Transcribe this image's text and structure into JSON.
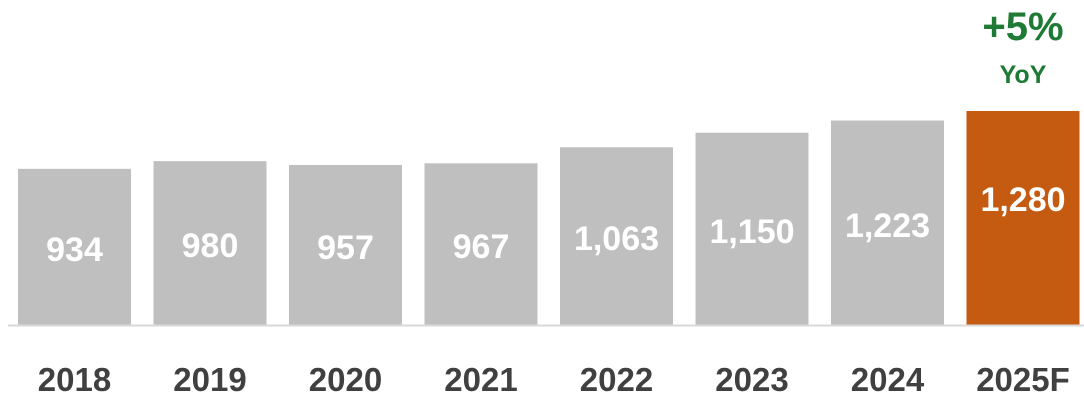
{
  "chart_data": {
    "type": "bar",
    "categories": [
      "2018",
      "2019",
      "2020",
      "2021",
      "2022",
      "2023",
      "2024",
      "2025F"
    ],
    "values": [
      934,
      980,
      957,
      967,
      1063,
      1150,
      1223,
      1280
    ],
    "value_labels": [
      "934",
      "980",
      "957",
      "967",
      "1,063",
      "1,150",
      "1,223",
      "1,280"
    ],
    "highlight_index": 7,
    "annotation": {
      "value": "+5%",
      "unit": "YoY"
    },
    "title": "",
    "xlabel": "",
    "ylabel": "",
    "grid": false,
    "legend": "none"
  },
  "colors": {
    "bar": "#bfbfbf",
    "highlight_bar": "#c55a11",
    "annotation": "#1e7a34",
    "value_label": "#ffffff",
    "category_label": "#404040",
    "axis": "#d9d9d9"
  }
}
